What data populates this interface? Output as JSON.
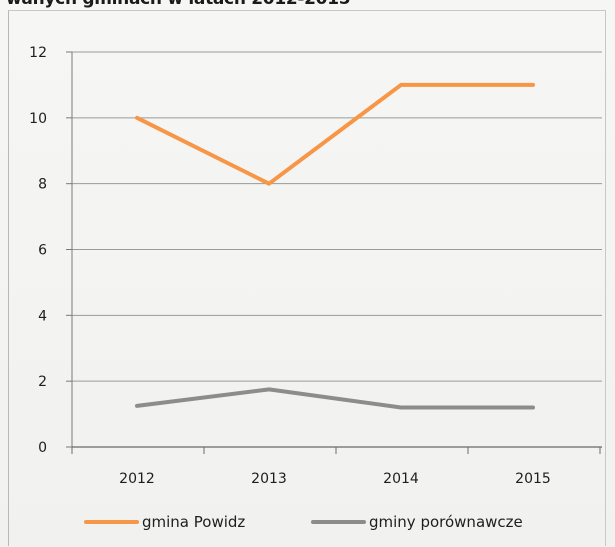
{
  "caption_fragment": "wanych gminach w latach 2012-2015",
  "colors": {
    "powidz": "#f79646",
    "porownawcze": "#8c8c8c",
    "grid": "#9a9a9a",
    "text": "#1e1e1e"
  },
  "chart_data": {
    "type": "line",
    "categories": [
      "2012",
      "2013",
      "2014",
      "2015"
    ],
    "series": [
      {
        "name": "gmina Powidz",
        "values": [
          10,
          8,
          11,
          11
        ],
        "color": "#f79646"
      },
      {
        "name": "gminy porównawcze",
        "values": [
          1.25,
          1.75,
          1.2,
          1.2
        ],
        "color": "#8c8c8c"
      }
    ],
    "yticks": [
      "0",
      "2",
      "4",
      "6",
      "8",
      "10",
      "12"
    ],
    "ylim": [
      0,
      12
    ],
    "grid": true,
    "legend_position": "bottom"
  }
}
